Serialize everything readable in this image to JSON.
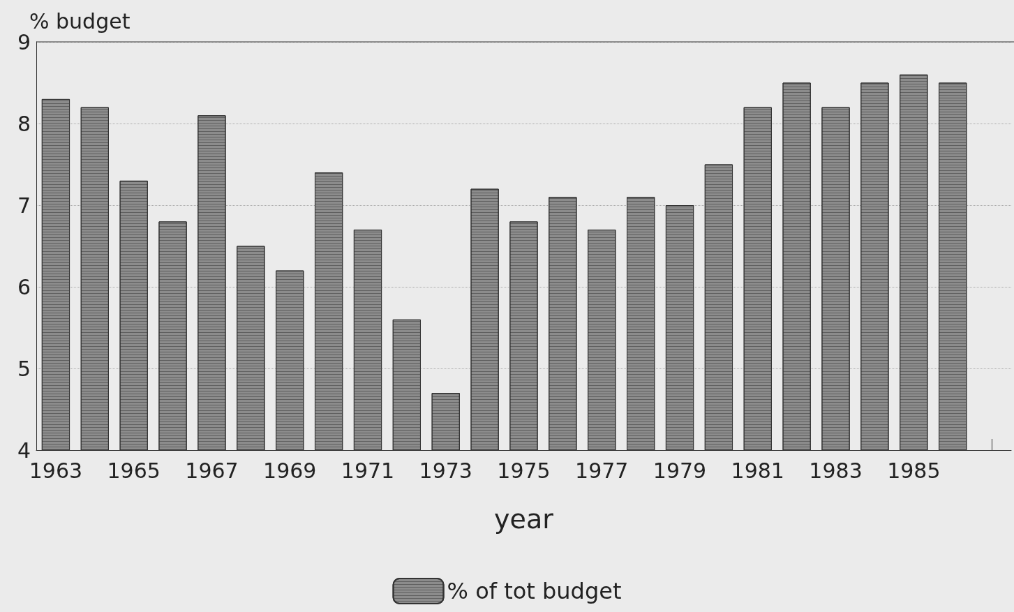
{
  "chart_data": {
    "type": "bar",
    "ylabel": "% budget",
    "xlabel": "year",
    "categories": [
      "1963",
      null,
      "1965",
      null,
      "1967",
      null,
      "1969",
      null,
      "1971",
      null,
      "1973",
      null,
      "1975",
      null,
      "1977",
      null,
      "1979",
      null,
      "1981",
      null,
      "1983",
      null,
      "1985",
      null,
      null
    ],
    "series": [
      {
        "name": "% of tot budget",
        "color": "#8c8c8c",
        "values": [
          8.3,
          8.2,
          7.3,
          6.8,
          8.1,
          6.5,
          6.2,
          7.4,
          6.7,
          5.6,
          4.7,
          7.2,
          6.8,
          7.1,
          6.7,
          7.1,
          7.0,
          7.5,
          8.2,
          8.5,
          8.2,
          8.5,
          8.6,
          8.5,
          null
        ]
      }
    ],
    "ylim": [
      4,
      9
    ],
    "yticks": [
      4,
      5,
      6,
      7,
      8,
      9
    ],
    "grid": "y",
    "legend": "bottom"
  }
}
